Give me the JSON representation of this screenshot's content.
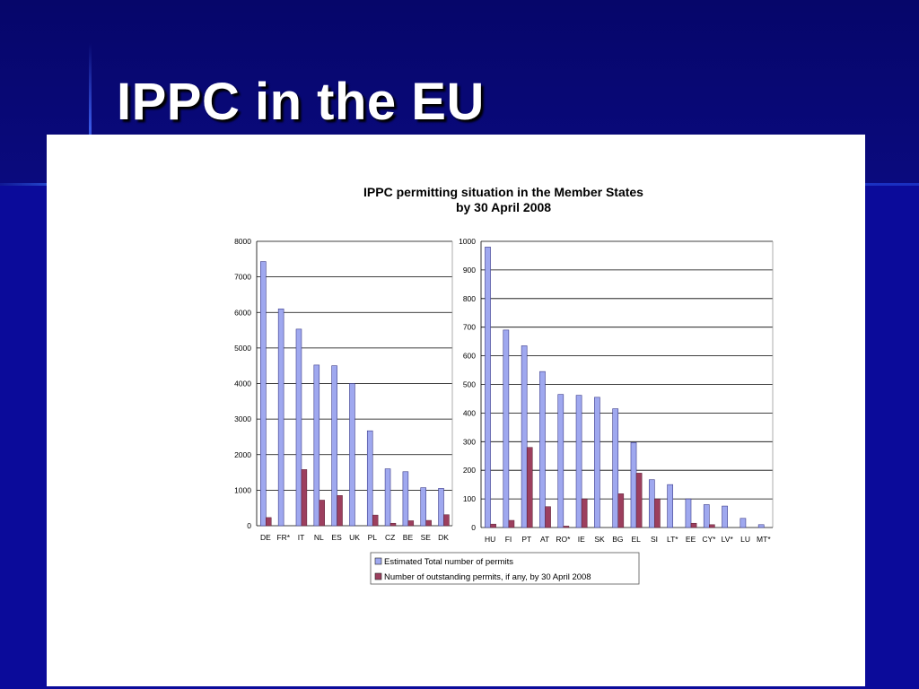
{
  "slide": {
    "title": "IPPC in the EU"
  },
  "chart_data": [
    {
      "type": "bar",
      "title": "IPPC permitting situation in the Member States",
      "subtitle": "by 30 April 2008",
      "categories": [
        "DE",
        "FR*",
        "IT",
        "NL",
        "ES",
        "UK",
        "PL",
        "CZ",
        "BE",
        "SE",
        "DK"
      ],
      "series": [
        {
          "name": "Estimated Total number of permits",
          "values": [
            7430,
            6100,
            5530,
            4520,
            4500,
            4000,
            2670,
            1600,
            1520,
            1070,
            1050
          ]
        },
        {
          "name": "Number of outstanding permits, if any, by 30 April 2008",
          "values": [
            230,
            0,
            1580,
            720,
            850,
            0,
            300,
            70,
            140,
            150,
            310
          ]
        }
      ],
      "ylim": [
        0,
        8000
      ],
      "yticks": [
        0,
        1000,
        2000,
        3000,
        4000,
        5000,
        6000,
        7000,
        8000
      ],
      "grid": true
    },
    {
      "type": "bar",
      "categories": [
        "HU",
        "FI",
        "PT",
        "AT",
        "RO*",
        "IE",
        "SK",
        "BG",
        "EL",
        "SI",
        "LT*",
        "EE",
        "CY*",
        "LV*",
        "LU",
        "MT*"
      ],
      "series": [
        {
          "name": "Estimated Total number of permits",
          "values": [
            980,
            690,
            635,
            545,
            465,
            462,
            455,
            415,
            297,
            167,
            150,
            100,
            80,
            75,
            32,
            10
          ]
        },
        {
          "name": "Number of outstanding permits, if any, by 30 April 2008",
          "values": [
            12,
            25,
            280,
            73,
            5,
            100,
            0,
            118,
            190,
            100,
            0,
            15,
            10,
            0,
            0,
            0
          ]
        }
      ],
      "ylim": [
        0,
        1000
      ],
      "yticks": [
        0,
        100,
        200,
        300,
        400,
        500,
        600,
        700,
        800,
        900,
        1000
      ],
      "grid": true
    }
  ],
  "legend": {
    "placement": "bottom",
    "items": [
      {
        "label": "Estimated Total number of permits",
        "color": "#9fa8ef"
      },
      {
        "label": "Number of outstanding permits, if any, by 30 April 2008",
        "color": "#9c3f5e"
      }
    ]
  },
  "colors": {
    "slide_bg": "#0a0a8c",
    "series_total": "#9fa8ef",
    "series_outstanding": "#9c3f5e"
  }
}
